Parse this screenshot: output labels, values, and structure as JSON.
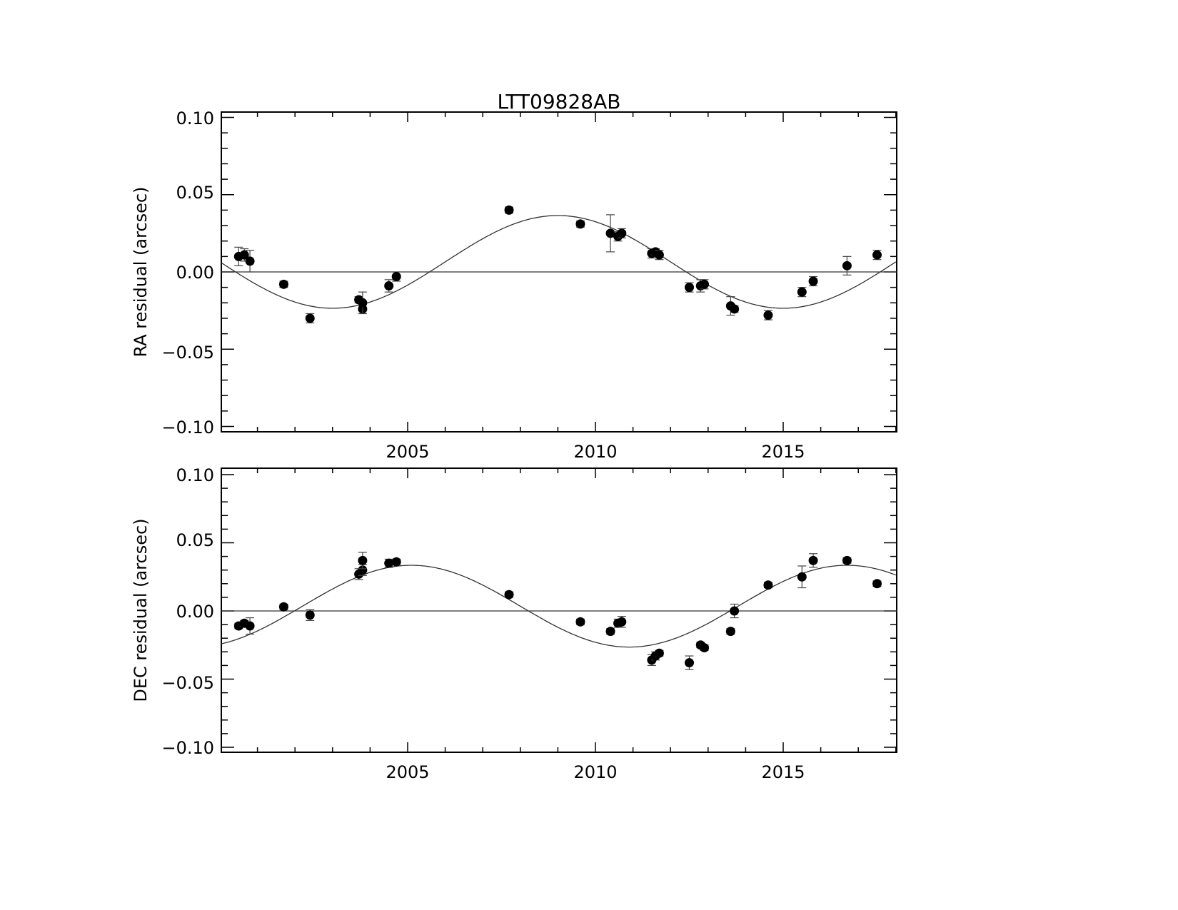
{
  "title": "LTT09828AB",
  "chart_data": [
    {
      "type": "scatter",
      "ylabel": "RA residual (arcsec)",
      "xlim": [
        2000,
        2018
      ],
      "ylim": [
        -0.1,
        0.1
      ],
      "xticks": [
        "2005",
        "2010",
        "2015"
      ],
      "yticks": [
        "0.10",
        "0.05",
        "0.00",
        "−0.05",
        "−0.10"
      ],
      "series": [
        {
          "points": [
            {
              "x": 2000.5,
              "y": 0.01,
              "err": 0.006
            },
            {
              "x": 2000.65,
              "y": 0.011,
              "err": 0.004
            },
            {
              "x": 2000.8,
              "y": 0.007,
              "err": 0.007
            },
            {
              "x": 2001.7,
              "y": -0.008,
              "err": 0.002
            },
            {
              "x": 2002.4,
              "y": -0.03,
              "err": 0.003
            },
            {
              "x": 2003.7,
              "y": -0.018,
              "err": 0.002
            },
            {
              "x": 2003.8,
              "y": -0.024,
              "err": 0.003
            },
            {
              "x": 2003.8,
              "y": -0.02,
              "err": 0.007
            },
            {
              "x": 2004.5,
              "y": -0.009,
              "err": 0.004
            },
            {
              "x": 2004.7,
              "y": -0.003,
              "err": 0.003
            },
            {
              "x": 2007.7,
              "y": 0.04,
              "err": 0.002
            },
            {
              "x": 2009.6,
              "y": 0.031,
              "err": 0.002
            },
            {
              "x": 2010.4,
              "y": 0.025,
              "err": 0.012
            },
            {
              "x": 2010.6,
              "y": 0.023,
              "err": 0.003
            },
            {
              "x": 2010.7,
              "y": 0.025,
              "err": 0.003
            },
            {
              "x": 2011.5,
              "y": 0.012,
              "err": 0.003
            },
            {
              "x": 2011.6,
              "y": 0.013,
              "err": 0.002
            },
            {
              "x": 2011.7,
              "y": 0.011,
              "err": 0.003
            },
            {
              "x": 2012.5,
              "y": -0.01,
              "err": 0.003
            },
            {
              "x": 2012.8,
              "y": -0.009,
              "err": 0.004
            },
            {
              "x": 2012.9,
              "y": -0.008,
              "err": 0.003
            },
            {
              "x": 2013.6,
              "y": -0.022,
              "err": 0.006
            },
            {
              "x": 2013.7,
              "y": -0.024,
              "err": 0.002
            },
            {
              "x": 2014.6,
              "y": -0.028,
              "err": 0.003
            },
            {
              "x": 2015.5,
              "y": -0.013,
              "err": 0.003
            },
            {
              "x": 2015.8,
              "y": -0.006,
              "err": 0.003
            },
            {
              "x": 2016.7,
              "y": 0.004,
              "err": 0.006
            },
            {
              "x": 2017.5,
              "y": 0.011,
              "err": 0.003
            }
          ]
        }
      ],
      "fit_curve": {
        "amplitude": 0.03,
        "offset": 0.0065,
        "period": 12.0,
        "peak_x": 2009.0
      },
      "zero_line": 0.0
    },
    {
      "type": "scatter",
      "ylabel": "DEC residual (arcsec)",
      "xlim": [
        2000,
        2018
      ],
      "ylim": [
        -0.1,
        0.1
      ],
      "xticks": [
        "2005",
        "2010",
        "2015"
      ],
      "yticks": [
        "0.10",
        "0.05",
        "0.00",
        "−0.05",
        "−0.10"
      ],
      "series": [
        {
          "points": [
            {
              "x": 2000.5,
              "y": -0.011,
              "err": 0.002
            },
            {
              "x": 2000.65,
              "y": -0.009,
              "err": 0.002
            },
            {
              "x": 2000.8,
              "y": -0.011,
              "err": 0.006
            },
            {
              "x": 2001.7,
              "y": 0.003,
              "err": 0.002
            },
            {
              "x": 2002.4,
              "y": -0.003,
              "err": 0.004
            },
            {
              "x": 2003.7,
              "y": 0.027,
              "err": 0.004
            },
            {
              "x": 2003.8,
              "y": 0.03,
              "err": 0.004
            },
            {
              "x": 2003.8,
              "y": 0.037,
              "err": 0.006
            },
            {
              "x": 2004.5,
              "y": 0.035,
              "err": 0.003
            },
            {
              "x": 2004.7,
              "y": 0.036,
              "err": 0.002
            },
            {
              "x": 2007.7,
              "y": 0.012,
              "err": 0.002
            },
            {
              "x": 2009.6,
              "y": -0.008,
              "err": 0.002
            },
            {
              "x": 2010.4,
              "y": -0.015,
              "err": 0.002
            },
            {
              "x": 2010.6,
              "y": -0.009,
              "err": 0.003
            },
            {
              "x": 2010.7,
              "y": -0.008,
              "err": 0.004
            },
            {
              "x": 2011.5,
              "y": -0.036,
              "err": 0.004
            },
            {
              "x": 2011.6,
              "y": -0.033,
              "err": 0.003
            },
            {
              "x": 2011.7,
              "y": -0.031,
              "err": 0.002
            },
            {
              "x": 2012.5,
              "y": -0.038,
              "err": 0.005
            },
            {
              "x": 2012.8,
              "y": -0.025,
              "err": 0.002
            },
            {
              "x": 2012.9,
              "y": -0.027,
              "err": 0.002
            },
            {
              "x": 2013.6,
              "y": -0.015,
              "err": 0.002
            },
            {
              "x": 2013.7,
              "y": 0.0,
              "err": 0.005
            },
            {
              "x": 2014.6,
              "y": 0.019,
              "err": 0.002
            },
            {
              "x": 2015.5,
              "y": 0.025,
              "err": 0.008
            },
            {
              "x": 2015.8,
              "y": 0.037,
              "err": 0.005
            },
            {
              "x": 2016.7,
              "y": 0.037,
              "err": 0.002
            },
            {
              "x": 2017.5,
              "y": 0.02,
              "err": 0.002
            }
          ]
        }
      ],
      "fit_curve": {
        "amplitude": 0.03,
        "offset": 0.0035,
        "period": 11.6,
        "peak_x": 2005.1
      },
      "zero_line": 0.0
    }
  ]
}
